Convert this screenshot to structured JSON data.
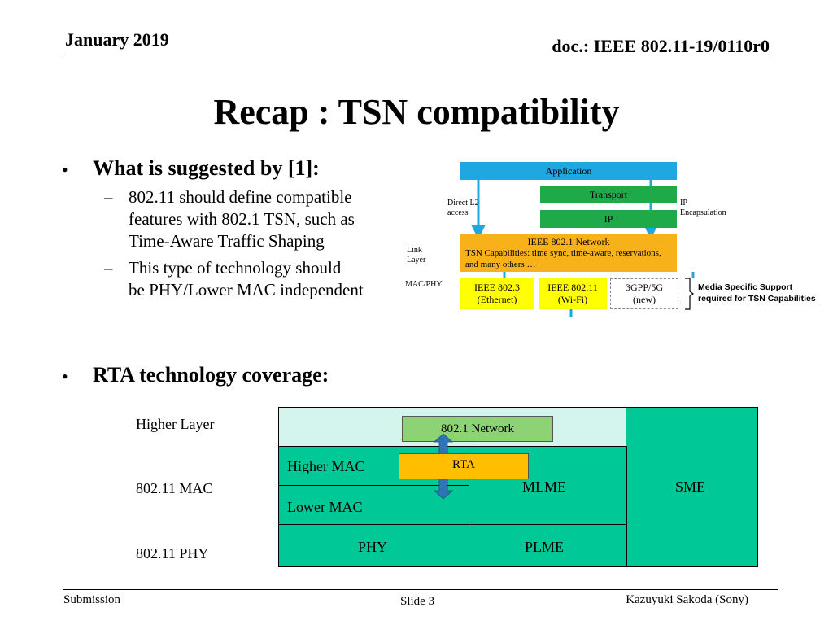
{
  "header": {
    "date": "January 2019",
    "doc_id": "doc.: IEEE 802.11-19/0110r0"
  },
  "title": "Recap : TSN compatibility",
  "bullets": [
    {
      "text": "What is suggested by [1]:",
      "subs": [
        [
          "802.11 should define compatible",
          "features with 802.1 TSN, such as",
          "Time-Aware Traffic Shaping"
        ],
        [
          "This type of technology should",
          "be PHY/Lower MAC independent"
        ]
      ]
    },
    {
      "text": "RTA technology coverage:"
    }
  ],
  "tsn_diagram": {
    "application": "Application",
    "transport": "Transport",
    "ip": "IP",
    "direct_l2_line1": "Direct L2",
    "direct_l2_line2": "access",
    "ip_encap_line1": "IP",
    "ip_encap_line2": "Encapsulation",
    "link_layer_line1": "Link",
    "link_layer_line2": "Layer",
    "mac_phy": "MAC/PHY",
    "network_line1": "IEEE 802.1 Network",
    "network_line2": "TSN Capabilities: time sync, time-aware, reservations,",
    "network_line3": "and many others …",
    "eth_line1": "IEEE 802.3",
    "eth_line2": "(Ethernet)",
    "wifi_line1": "IEEE 802.11",
    "wifi_line2": "(Wi-Fi)",
    "g5_line1": "3GPP/5G",
    "g5_line2": "(new)",
    "media_line1": "Media Specific Support",
    "media_line2": "required for TSN Capabilities",
    "colors": {
      "blue": "#1ea7e1",
      "green": "#1faa4a",
      "orange": "#f7b21a",
      "yellow": "#ffff00"
    }
  },
  "rta_diagram": {
    "row_labels": [
      "Higher Layer",
      "802.11 MAC",
      "802.11 PHY"
    ],
    "network": "802.1 Network",
    "rta": "RTA",
    "higher_mac": "Higher MAC",
    "lower_mac": "Lower MAC",
    "mlme": "MLME",
    "sme": "SME",
    "phy": "PHY",
    "plme": "PLME",
    "colors": {
      "teal": "#00c896",
      "light": "#d4f4ee",
      "net_green": "#8ed276",
      "rta_orange": "#ffbf00",
      "arrow": "#2e75b6"
    }
  },
  "footer": {
    "left": "Submission",
    "slide": "Slide 3",
    "author": "Kazuyuki Sakoda (Sony)"
  }
}
